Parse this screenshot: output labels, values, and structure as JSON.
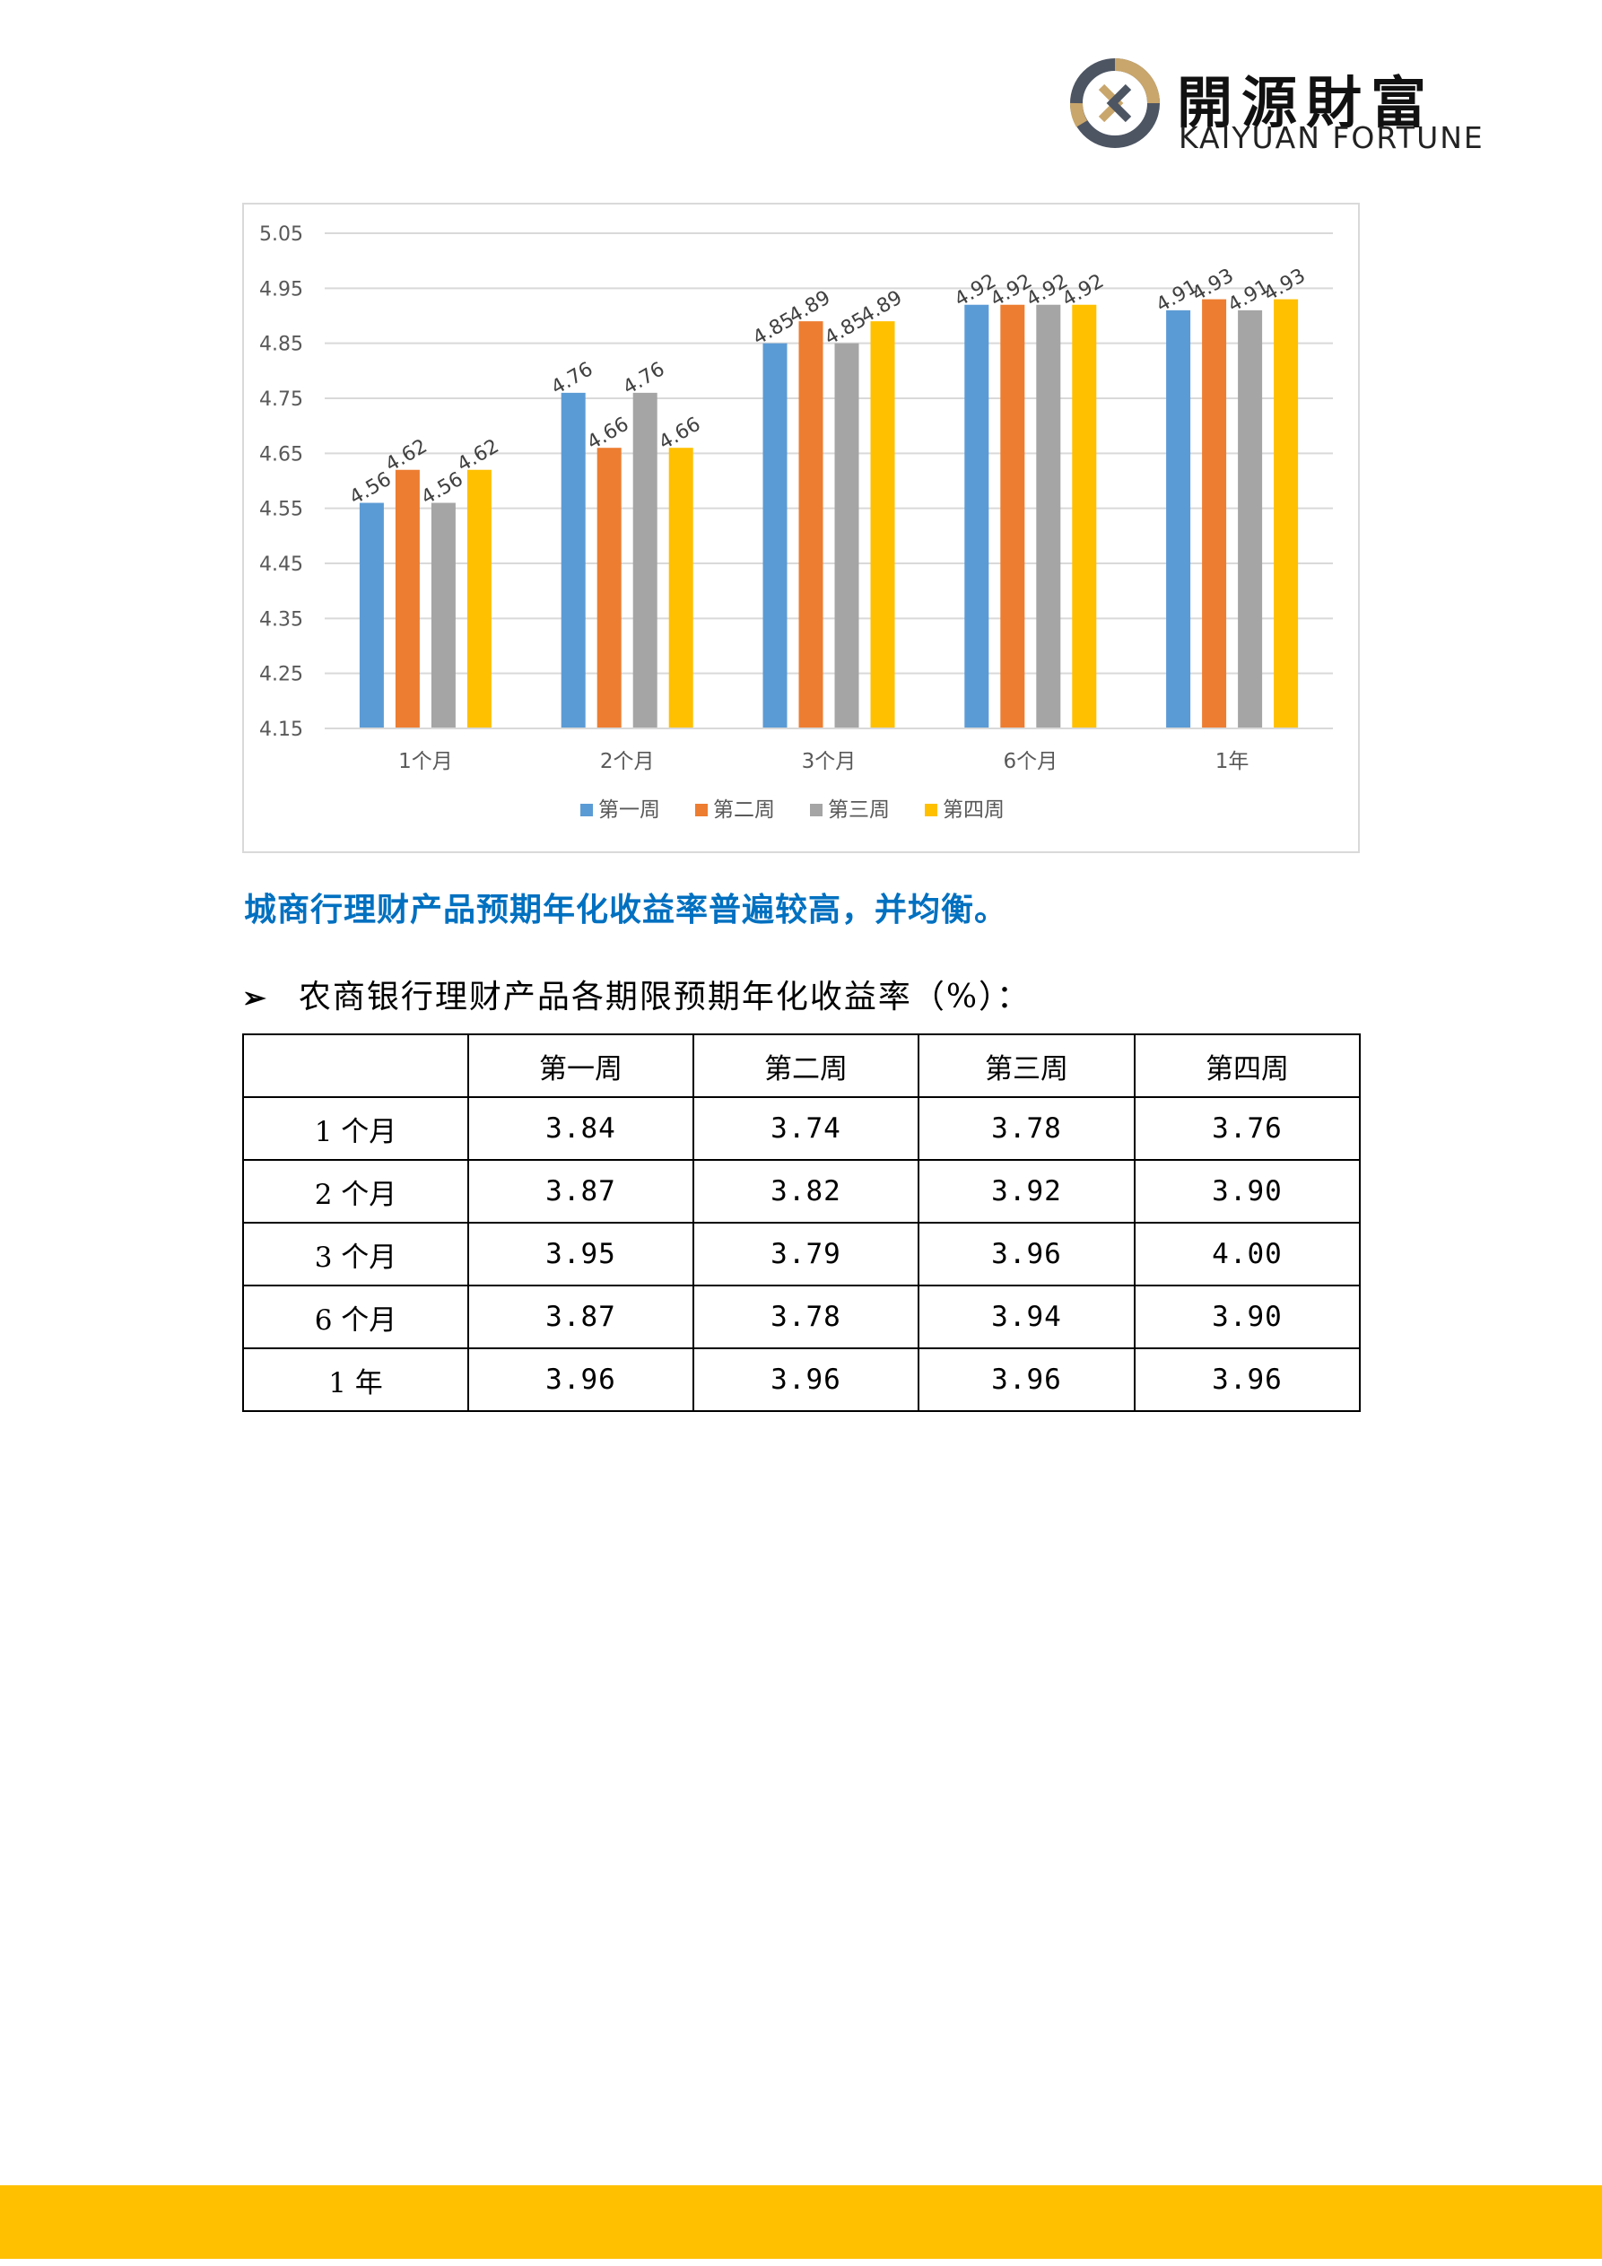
{
  "header": {
    "logo_cn": "開源財富",
    "logo_en": "KAIYUAN FORTUNE",
    "colors": {
      "ring_gold": "#c9a66b",
      "ring_gray": "#4d5563"
    }
  },
  "chart_data": {
    "type": "bar",
    "categories": [
      "1个月",
      "2个月",
      "3个月",
      "6个月",
      "1年"
    ],
    "series": [
      {
        "name": "第一周",
        "color": "#5b9bd5",
        "values": [
          4.56,
          4.76,
          4.85,
          4.92,
          4.91
        ]
      },
      {
        "name": "第二周",
        "color": "#ed7d31",
        "values": [
          4.62,
          4.66,
          4.89,
          4.92,
          4.93
        ]
      },
      {
        "name": "第三周",
        "color": "#a5a5a5",
        "values": [
          4.56,
          4.76,
          4.85,
          4.92,
          4.91
        ]
      },
      {
        "name": "第四周",
        "color": "#ffc000",
        "values": [
          4.62,
          4.66,
          4.89,
          4.92,
          4.93
        ]
      }
    ],
    "yticks": [
      "4.15",
      "4.25",
      "4.35",
      "4.45",
      "4.55",
      "4.65",
      "4.75",
      "4.85",
      "4.95",
      "5.05"
    ],
    "ylim": [
      4.15,
      5.05
    ],
    "grid": true,
    "legend": "bottom"
  },
  "heading": "城商行理财产品预期年化收益率普遍较高，并均衡。",
  "bullet": {
    "arrow": "➢",
    "text": "农商银行理财产品各期限预期年化收益率（%）："
  },
  "table": {
    "headers": [
      "",
      "第一周",
      "第二周",
      "第三周",
      "第四周"
    ],
    "rows": [
      [
        "1 个月",
        "3.84",
        "3.74",
        "3.78",
        "3.76"
      ],
      [
        "2 个月",
        "3.87",
        "3.82",
        "3.92",
        "3.90"
      ],
      [
        "3 个月",
        "3.95",
        "3.79",
        "3.96",
        "4.00"
      ],
      [
        "6 个月",
        "3.87",
        "3.78",
        "3.94",
        "3.90"
      ],
      [
        "1 年",
        "3.96",
        "3.96",
        "3.96",
        "3.96"
      ]
    ]
  },
  "footer": {
    "color": "#ffc000"
  }
}
